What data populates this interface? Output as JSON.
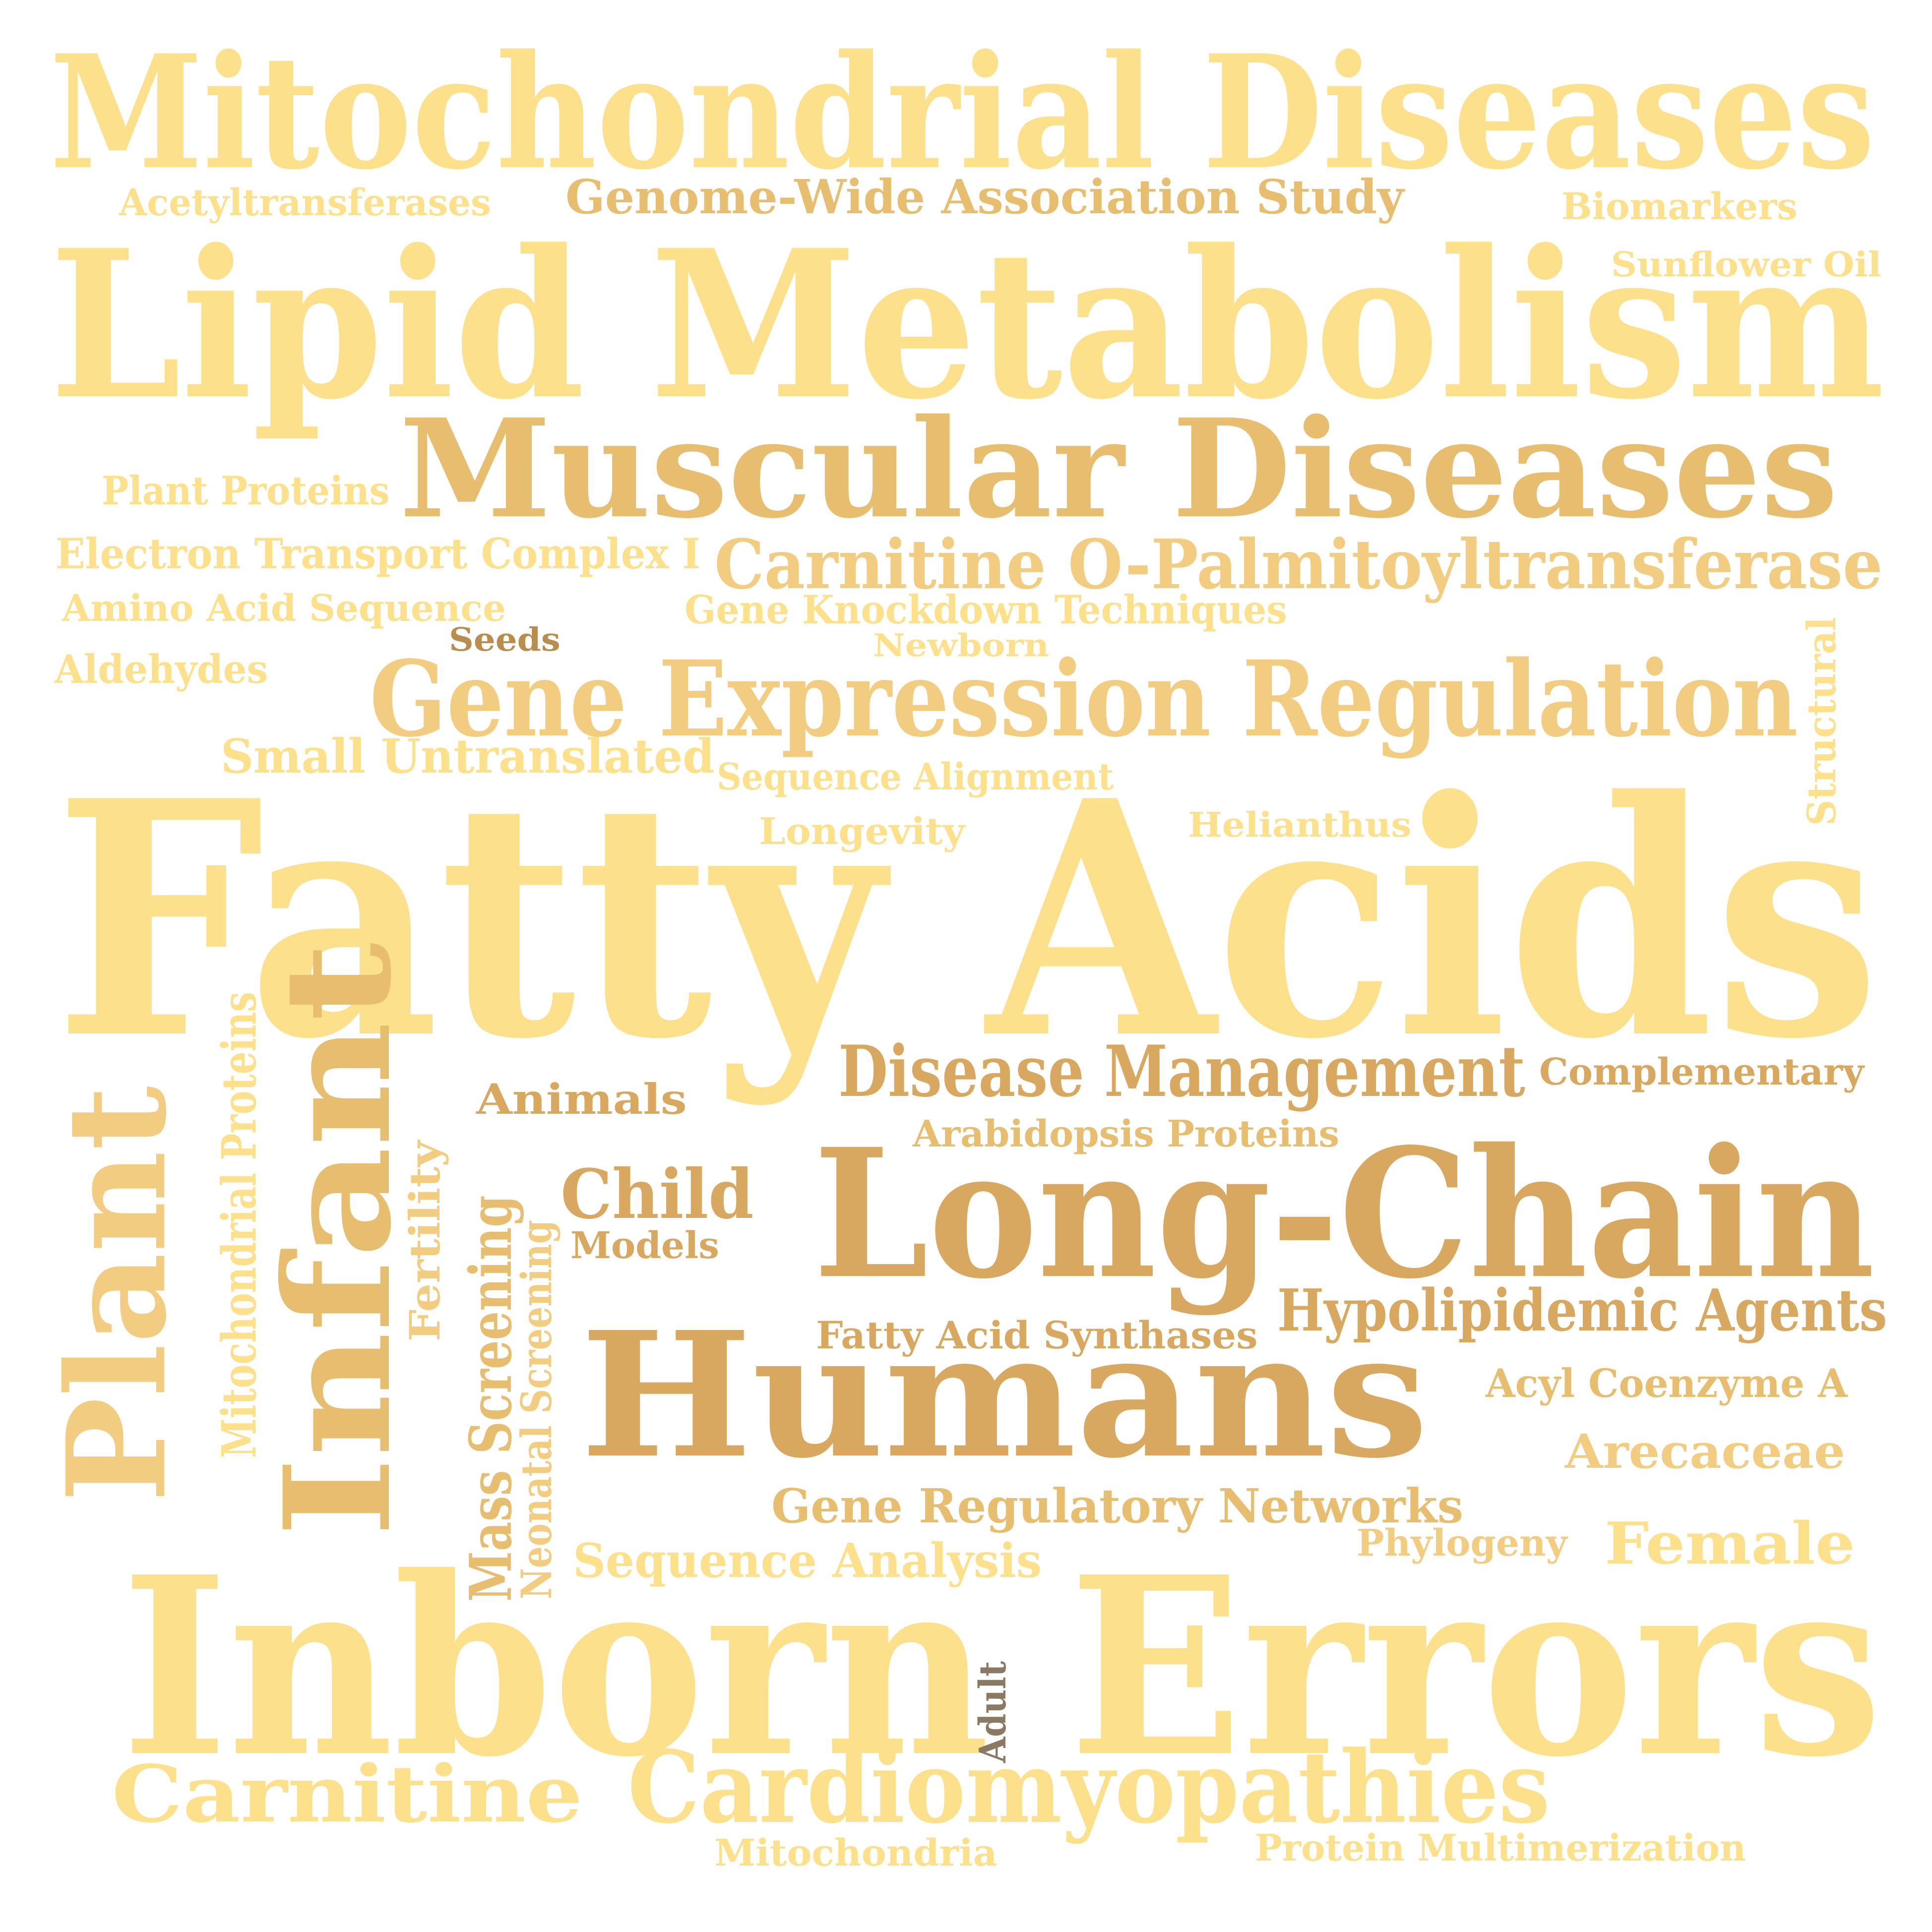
{
  "palette": {
    "light": "#fde08c",
    "mid": "#f2cc80",
    "tan": "#e7bd70",
    "dark": "#d9a860",
    "brown": "#b98d4e",
    "adult": "#8b7a63"
  },
  "words": [
    {
      "id": "mitochondrial-diseases",
      "text": "Mitochondrial Diseases",
      "color": "light"
    },
    {
      "id": "acetyltransferases",
      "text": "Acetyltransferases",
      "color": "light"
    },
    {
      "id": "genome-wide-association-study",
      "text": "Genome-Wide Association Study",
      "color": "tan"
    },
    {
      "id": "biomarkers",
      "text": "Biomarkers",
      "color": "light"
    },
    {
      "id": "sunflower-oil",
      "text": "Sunflower Oil",
      "color": "light"
    },
    {
      "id": "lipid-metabolism",
      "text": "Lipid Metabolism",
      "color": "light"
    },
    {
      "id": "muscular-diseases",
      "text": "Muscular Diseases",
      "color": "tan"
    },
    {
      "id": "plant-proteins",
      "text": "Plant Proteins",
      "color": "light"
    },
    {
      "id": "electron-transport-complex-i",
      "text": "Electron Transport Complex I",
      "color": "light"
    },
    {
      "id": "carnitine-o-palmitoyltransferase",
      "text": "Carnitine O-Palmitoyltransferase",
      "color": "mid"
    },
    {
      "id": "amino-acid-sequence",
      "text": "Amino Acid Sequence",
      "color": "light"
    },
    {
      "id": "gene-knockdown-techniques",
      "text": "Gene Knockdown Techniques",
      "color": "light"
    },
    {
      "id": "seeds",
      "text": "Seeds",
      "color": "brown"
    },
    {
      "id": "newborn",
      "text": "Newborn",
      "color": "light"
    },
    {
      "id": "aldehydes",
      "text": "Aldehydes",
      "color": "light"
    },
    {
      "id": "gene-expression-regulation",
      "text": "Gene Expression Regulation",
      "color": "mid"
    },
    {
      "id": "structural",
      "text": "Structural",
      "color": "light"
    },
    {
      "id": "small-untranslated",
      "text": "Small Untranslated",
      "color": "light"
    },
    {
      "id": "sequence-alignment",
      "text": "Sequence Alignment",
      "color": "light"
    },
    {
      "id": "longevity",
      "text": "Longevity",
      "color": "light"
    },
    {
      "id": "helianthus",
      "text": "Helianthus",
      "color": "light"
    },
    {
      "id": "fatty-acids",
      "text": "Fatty Acids",
      "color": "light"
    },
    {
      "id": "mitochondrial-proteins",
      "text": "Mitochondrial Proteins",
      "color": "light"
    },
    {
      "id": "plant",
      "text": "Plant",
      "color": "mid"
    },
    {
      "id": "infant",
      "text": "Infant",
      "color": "tan"
    },
    {
      "id": "disease-management",
      "text": "Disease Management",
      "color": "dark"
    },
    {
      "id": "complementary",
      "text": "Complementary",
      "color": "dark"
    },
    {
      "id": "animals",
      "text": "Animals",
      "color": "dark"
    },
    {
      "id": "arabidopsis-proteins",
      "text": "Arabidopsis Proteins",
      "color": "tan"
    },
    {
      "id": "fertility",
      "text": "Fertility",
      "color": "mid"
    },
    {
      "id": "mass-screening",
      "text": "Mass Screening",
      "color": "tan"
    },
    {
      "id": "neonatal-screening",
      "text": "Neonatal Screening",
      "color": "mid"
    },
    {
      "id": "child",
      "text": "Child",
      "color": "dark"
    },
    {
      "id": "models",
      "text": "Models",
      "color": "dark"
    },
    {
      "id": "long-chain",
      "text": "Long-Chain",
      "color": "dark"
    },
    {
      "id": "hypolipidemic-agents",
      "text": "Hypolipidemic Agents",
      "color": "dark"
    },
    {
      "id": "fatty-acid-synthases",
      "text": "Fatty Acid Synthases",
      "color": "dark"
    },
    {
      "id": "humans",
      "text": "Humans",
      "color": "dark"
    },
    {
      "id": "acyl-coenzyme-a",
      "text": "Acyl Coenzyme A",
      "color": "tan"
    },
    {
      "id": "arecaceae",
      "text": "Arecaceae",
      "color": "mid"
    },
    {
      "id": "gene-regulatory-networks",
      "text": "Gene Regulatory Networks",
      "color": "tan"
    },
    {
      "id": "phylogeny",
      "text": "Phylogeny",
      "color": "mid"
    },
    {
      "id": "female",
      "text": "Female",
      "color": "light"
    },
    {
      "id": "sequence-analysis",
      "text": "Sequence Analysis",
      "color": "light"
    },
    {
      "id": "inborn-errors",
      "text": "Inborn Errors",
      "color": "light"
    },
    {
      "id": "adult",
      "text": "Adult",
      "color": "adult"
    },
    {
      "id": "carnitine",
      "text": "Carnitine",
      "color": "light"
    },
    {
      "id": "cardiomyopathies",
      "text": "Cardiomyopathies",
      "color": "light"
    },
    {
      "id": "mitochondria",
      "text": "Mitochondria",
      "color": "light"
    },
    {
      "id": "protein-multimerization",
      "text": "Protein Multimerization",
      "color": "light"
    }
  ]
}
